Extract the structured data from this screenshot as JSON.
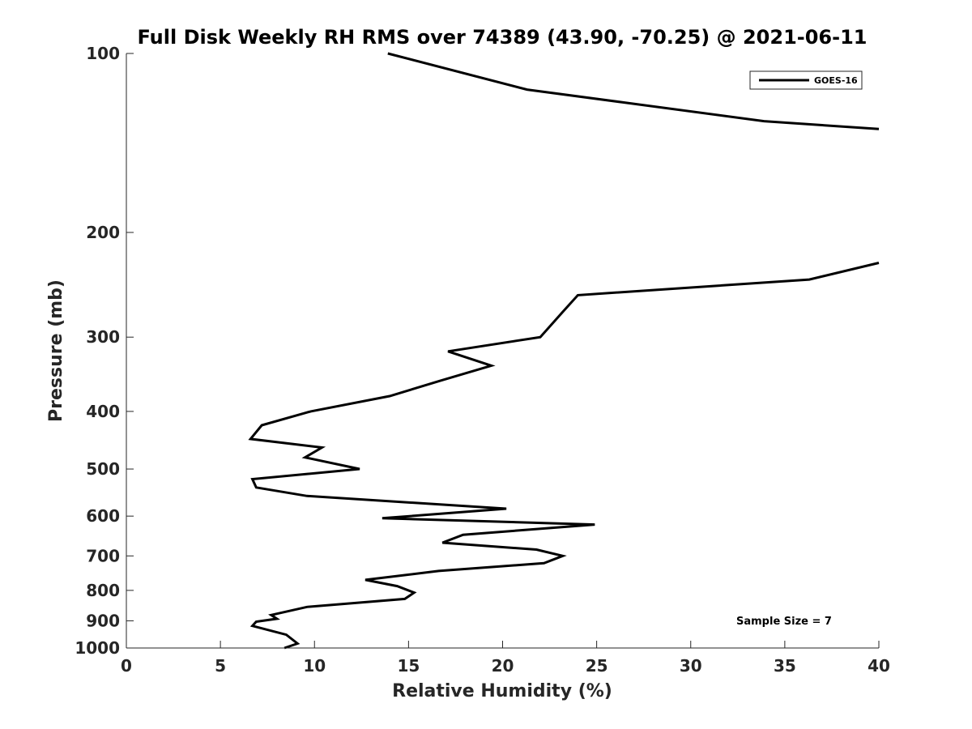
{
  "chart_data": {
    "type": "line",
    "title": "Full Disk Weekly RH RMS over 74389 (43.90, -70.25) @ 2021-06-11",
    "xlabel": "Relative Humidity (%)",
    "ylabel": "Pressure (mb)",
    "xlim": [
      0,
      40
    ],
    "ylim": [
      100,
      1000
    ],
    "yscale": "log",
    "y_reversed": true,
    "grid": false,
    "legend_position": "top-right",
    "xticks": [
      0,
      5,
      10,
      15,
      20,
      25,
      30,
      35,
      40
    ],
    "yticks": [
      100,
      200,
      300,
      400,
      500,
      600,
      700,
      800,
      900,
      1000
    ],
    "annotation": "Sample Size = 7",
    "series": [
      {
        "name": "GOES-16",
        "color": "#000000",
        "points": [
          [
            13.9,
            100
          ],
          [
            21.3,
            115
          ],
          [
            33.9,
            130
          ],
          [
            40.0,
            134
          ]
        ]
      },
      {
        "name": "GOES-16",
        "color": "#000000",
        "points": [
          [
            40.0,
            225
          ],
          [
            36.3,
            240
          ],
          [
            24.0,
            255
          ],
          [
            23.2,
            272
          ],
          [
            22.0,
            300
          ],
          [
            17.1,
            317
          ],
          [
            19.4,
            335
          ],
          [
            16.7,
            355
          ],
          [
            14.0,
            377
          ],
          [
            9.8,
            400
          ],
          [
            7.2,
            422
          ],
          [
            6.6,
            445
          ],
          [
            10.4,
            460
          ],
          [
            9.5,
            478
          ],
          [
            12.4,
            500
          ],
          [
            6.7,
            520
          ],
          [
            6.9,
            537
          ],
          [
            9.6,
            555
          ],
          [
            20.2,
            583
          ],
          [
            13.6,
            605
          ],
          [
            24.9,
            620
          ],
          [
            17.9,
            645
          ],
          [
            16.8,
            665
          ],
          [
            21.8,
            683
          ],
          [
            23.2,
            700
          ],
          [
            22.2,
            720
          ],
          [
            16.6,
            742
          ],
          [
            12.7,
            768
          ],
          [
            14.4,
            787
          ],
          [
            15.3,
            807
          ],
          [
            14.8,
            827
          ],
          [
            9.6,
            853
          ],
          [
            7.7,
            880
          ],
          [
            8.0,
            893
          ],
          [
            6.9,
            903
          ],
          [
            6.7,
            918
          ],
          [
            8.5,
            950
          ],
          [
            9.1,
            983
          ],
          [
            8.4,
            1000
          ]
        ]
      }
    ]
  }
}
